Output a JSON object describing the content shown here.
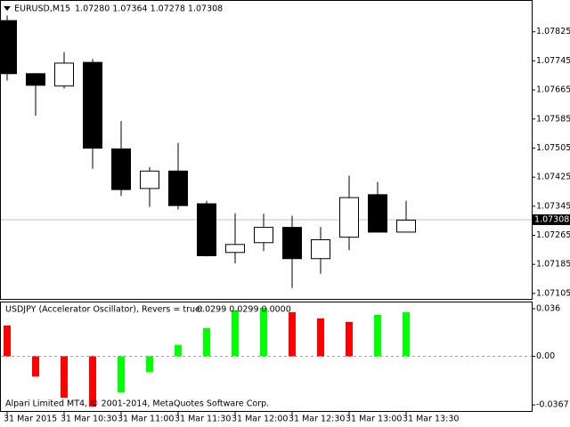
{
  "chart_data": [
    {
      "type": "candlestick",
      "title": "EURUSD,M15",
      "header_values": "1.07280 1.07364 1.07278 1.07308",
      "categories": [
        "31 Mar 2015",
        null,
        "31 Mar 10:30",
        null,
        "31 Mar 11:00",
        null,
        "31 Mar 11:30",
        null,
        "31 Mar 12:00",
        null,
        "31 Mar 12:30",
        null,
        "31 Mar 13:00",
        null,
        "31 Mar 13:30"
      ],
      "open": [
        1.07857,
        1.07711,
        1.07677,
        1.07742,
        1.07504,
        1.07395,
        1.07443,
        1.07353,
        1.07219,
        1.07246,
        1.07288,
        1.07202,
        1.07261,
        1.07378,
        1.07275
      ],
      "high": [
        1.0787,
        1.07711,
        1.07769,
        1.0775,
        1.07579,
        1.07453,
        1.07519,
        1.0736,
        1.07326,
        1.07324,
        1.07319,
        1.07288,
        1.07429,
        1.07412,
        1.0736
      ],
      "low": [
        1.07691,
        1.07594,
        1.07669,
        1.07448,
        1.07373,
        1.07343,
        1.07336,
        1.07207,
        1.07188,
        1.07222,
        1.0712,
        1.07159,
        1.07224,
        1.07275,
        1.07273
      ],
      "close": [
        1.07711,
        1.07679,
        1.0774,
        1.07506,
        1.07392,
        1.07443,
        1.07348,
        1.0721,
        1.07241,
        1.07288,
        1.07202,
        1.07254,
        1.0737,
        1.07275,
        1.07308
      ],
      "up_color": "#ffffff",
      "down_color": "#000000",
      "current_price": 1.07308,
      "ylim": [
        1.0709,
        1.0791
      ],
      "yticks": [
        1.07825,
        1.07745,
        1.07665,
        1.07585,
        1.07505,
        1.07425,
        1.07345,
        1.07265,
        1.07185,
        1.07105
      ]
    },
    {
      "type": "bar",
      "title": "USDJPY (Accelerator Oscillator), Revers = true:",
      "header_values": "0.0299 0.0299 0.0000",
      "annotation": "Alpari Limited MT4, © 2001-2014, MetaQuotes Software Corp.",
      "values": [
        0.0233,
        -0.0153,
        -0.0313,
        -0.038,
        -0.0273,
        -0.012,
        0.0087,
        0.0213,
        0.0347,
        0.0367,
        0.0333,
        0.0287,
        0.026,
        0.0313,
        0.0333
      ],
      "colors": [
        "#ff0000",
        "#ff0000",
        "#ff0000",
        "#ff0000",
        "#00ff00",
        "#00ff00",
        "#00ff00",
        "#00ff00",
        "#00ff00",
        "#00ff00",
        "#ff0000",
        "#ff0000",
        "#ff0000",
        "#00ff00",
        "#00ff00"
      ],
      "ylim": [
        -0.0413,
        0.0407
      ],
      "yticks": [
        0.036,
        {
          "value": 0,
          "label": "0.00"
        },
        -0.0367
      ]
    }
  ]
}
